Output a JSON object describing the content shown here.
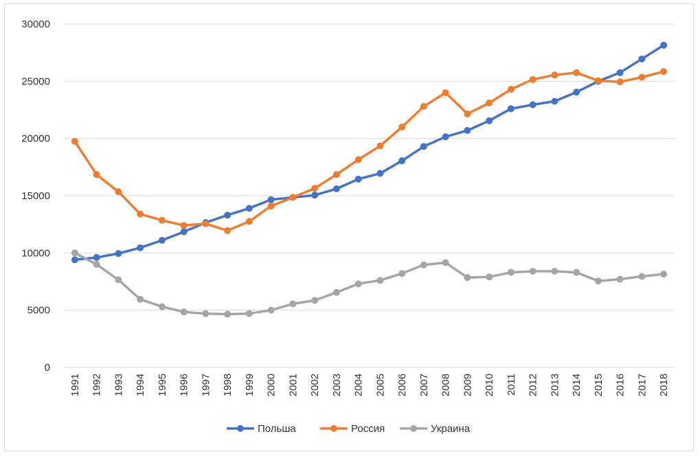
{
  "chart_data": {
    "type": "line",
    "title": "",
    "xlabel": "",
    "ylabel": "",
    "ylim": [
      0,
      30000
    ],
    "yticks": [
      0,
      5000,
      10000,
      15000,
      20000,
      25000,
      30000
    ],
    "grid": true,
    "legend_position": "bottom",
    "categories": [
      "1991",
      "1992",
      "1993",
      "1994",
      "1995",
      "1996",
      "1997",
      "1998",
      "1999",
      "2000",
      "2001",
      "2002",
      "2003",
      "2004",
      "2005",
      "2006",
      "2007",
      "2008",
      "2009",
      "2010",
      "2011",
      "2012",
      "2013",
      "2014",
      "2015",
      "2016",
      "2017",
      "2018"
    ],
    "series": [
      {
        "name": "Польша",
        "color": "#4472c4",
        "values": [
          9400,
          9600,
          9950,
          10450,
          11100,
          11850,
          12650,
          13300,
          13900,
          14650,
          14850,
          15050,
          15600,
          16450,
          16950,
          18050,
          19300,
          20150,
          20700,
          21550,
          22600,
          22950,
          23250,
          24050,
          25000,
          25750,
          26950,
          28150
        ]
      },
      {
        "name": "Россия",
        "color": "#ed7d31",
        "values": [
          19750,
          16850,
          15350,
          13400,
          12850,
          12400,
          12550,
          11950,
          12750,
          14100,
          14850,
          15650,
          16850,
          18150,
          19350,
          21000,
          22800,
          24000,
          22150,
          23100,
          24300,
          25150,
          25550,
          25750,
          25050,
          24950,
          25350,
          25850
        ]
      },
      {
        "name": "Украина",
        "color": "#a5a5a5",
        "values": [
          10000,
          9000,
          7650,
          5950,
          5300,
          4850,
          4700,
          4650,
          4700,
          5000,
          5550,
          5850,
          6550,
          7300,
          7600,
          8200,
          8950,
          9150,
          7850,
          7900,
          8300,
          8400,
          8400,
          8300,
          7550,
          7700,
          7950,
          8150
        ]
      }
    ]
  }
}
